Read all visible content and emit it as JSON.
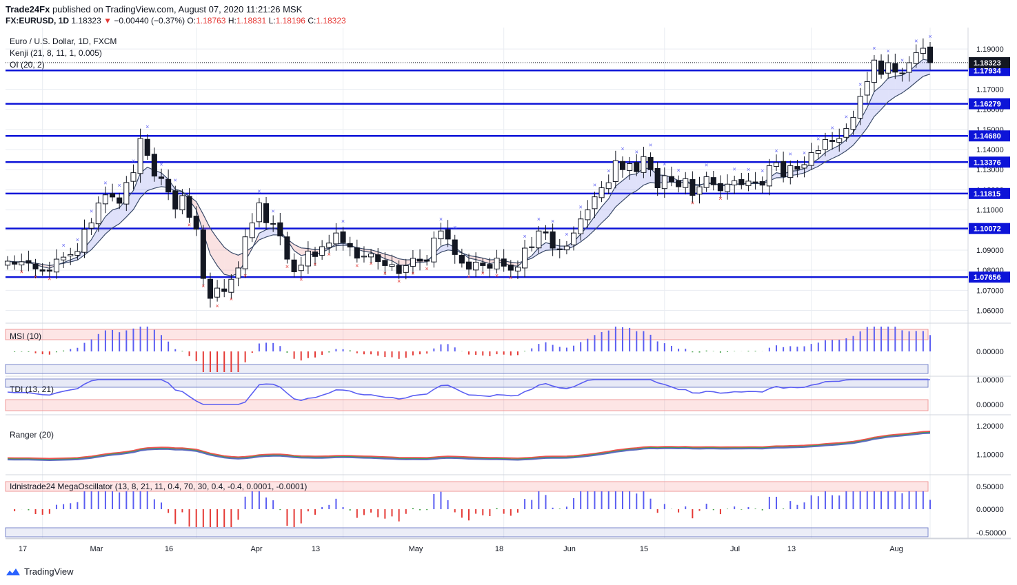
{
  "header": {
    "publisher": "Trade24Fx",
    "published_text": "published on TradingView.com, August 07, 2020 11:21:26 MSK",
    "symbol": "FX:EURUSD, 1D",
    "last": "1.18323",
    "change": "−0.00440 (−0.37%)",
    "o_label": "O:",
    "o": "1.18763",
    "h_label": "H:",
    "h": "1.18831",
    "l_label": "L:",
    "l": "1.18196",
    "c_label": "C:",
    "c": "1.18323"
  },
  "legend": {
    "instrument": "Euro / U.S. Dollar, 1D, FXCM",
    "kenji": "Kenji (21, 8, 11, 1, 0.005)",
    "oi": "OI (20, 2)",
    "msi": "MSI (10)",
    "tdi": "TDI (13, 21)",
    "ranger": "Ranger (20)",
    "mega": "Idnistrade24 MegaOscillator (13, 8, 21, 11, 0.4, 70, 30, 0.4, -0.4, 0.0001, -0.0001)"
  },
  "footer": {
    "brand": "TradingView"
  },
  "colors": {
    "level": "#0d14d8",
    "bull_body": "#ffffff",
    "bear_body": "#131722",
    "up": "#5b5ef2",
    "down": "#e53935",
    "green": "#43a047",
    "grid": "#e9ecf2"
  },
  "chart_data": {
    "type": "candlestick",
    "title": "Euro / U.S. Dollar, 1D, FXCM",
    "x_tick_labels": [
      "17",
      "Mar",
      "16",
      "Apr",
      "13",
      "May",
      "18",
      "Jun",
      "15",
      "Jul",
      "13",
      "Aug"
    ],
    "y_ticks": [
      "1.19000",
      "1.18000",
      "1.17000",
      "1.16000",
      "1.15000",
      "1.14000",
      "1.13000",
      "1.12000",
      "1.11000",
      "1.10000",
      "1.09000",
      "1.08000",
      "1.07000",
      "1.06000"
    ],
    "ylim": [
      1.054,
      1.2
    ],
    "last_price": "1.18323",
    "levels": [
      "1.17934",
      "1.16279",
      "1.14680",
      "1.13376",
      "1.11815",
      "1.10072",
      "1.07656"
    ],
    "closes": [
      1.0845,
      1.083,
      1.0842,
      1.0835,
      1.0806,
      1.0795,
      1.0795,
      1.0855,
      1.0865,
      1.0878,
      1.0893,
      1.1003,
      1.1035,
      1.1134,
      1.1175,
      1.1164,
      1.1133,
      1.1236,
      1.1285,
      1.1455,
      1.1371,
      1.1268,
      1.1256,
      1.1189,
      1.1104,
      1.1171,
      1.1063,
      1.1004,
      1.0759,
      1.066,
      1.0711,
      1.0694,
      1.0755,
      1.0811,
      1.0966,
      1.1035,
      1.1135,
      1.1036,
      1.103,
      1.097,
      1.0855,
      1.0792,
      1.0825,
      1.0895,
      1.0868,
      1.0917,
      1.0935,
      1.0985,
      1.0937,
      1.0915,
      1.086,
      1.087,
      1.0881,
      1.0843,
      1.0823,
      1.0828,
      1.0783,
      1.0823,
      1.0859,
      1.0845,
      1.0845,
      1.096,
      1.0995,
      1.0955,
      1.0878,
      1.0835,
      1.0805,
      1.084,
      1.0823,
      1.081,
      1.086,
      1.082,
      1.08,
      1.0815,
      1.091,
      1.0915,
      1.0995,
      1.0985,
      1.091,
      1.0905,
      1.092,
      1.0985,
      1.1055,
      1.11,
      1.1165,
      1.121,
      1.1235,
      1.1345,
      1.13,
      1.133,
      1.129,
      1.1365,
      1.13,
      1.121,
      1.127,
      1.124,
      1.1215,
      1.1255,
      1.1172,
      1.1215,
      1.1265,
      1.1225,
      1.1195,
      1.1228,
      1.1245,
      1.1225,
      1.1243,
      1.1235,
      1.1223,
      1.132,
      1.1335,
      1.1265,
      1.132,
      1.1302,
      1.1325,
      1.1385,
      1.1395,
      1.145,
      1.144,
      1.1455,
      1.1505,
      1.156,
      1.1665,
      1.1738,
      1.1845,
      1.1774,
      1.1832,
      1.1785,
      1.1778,
      1.1832,
      1.1882,
      1.1904,
      1.1832
    ]
  }
}
